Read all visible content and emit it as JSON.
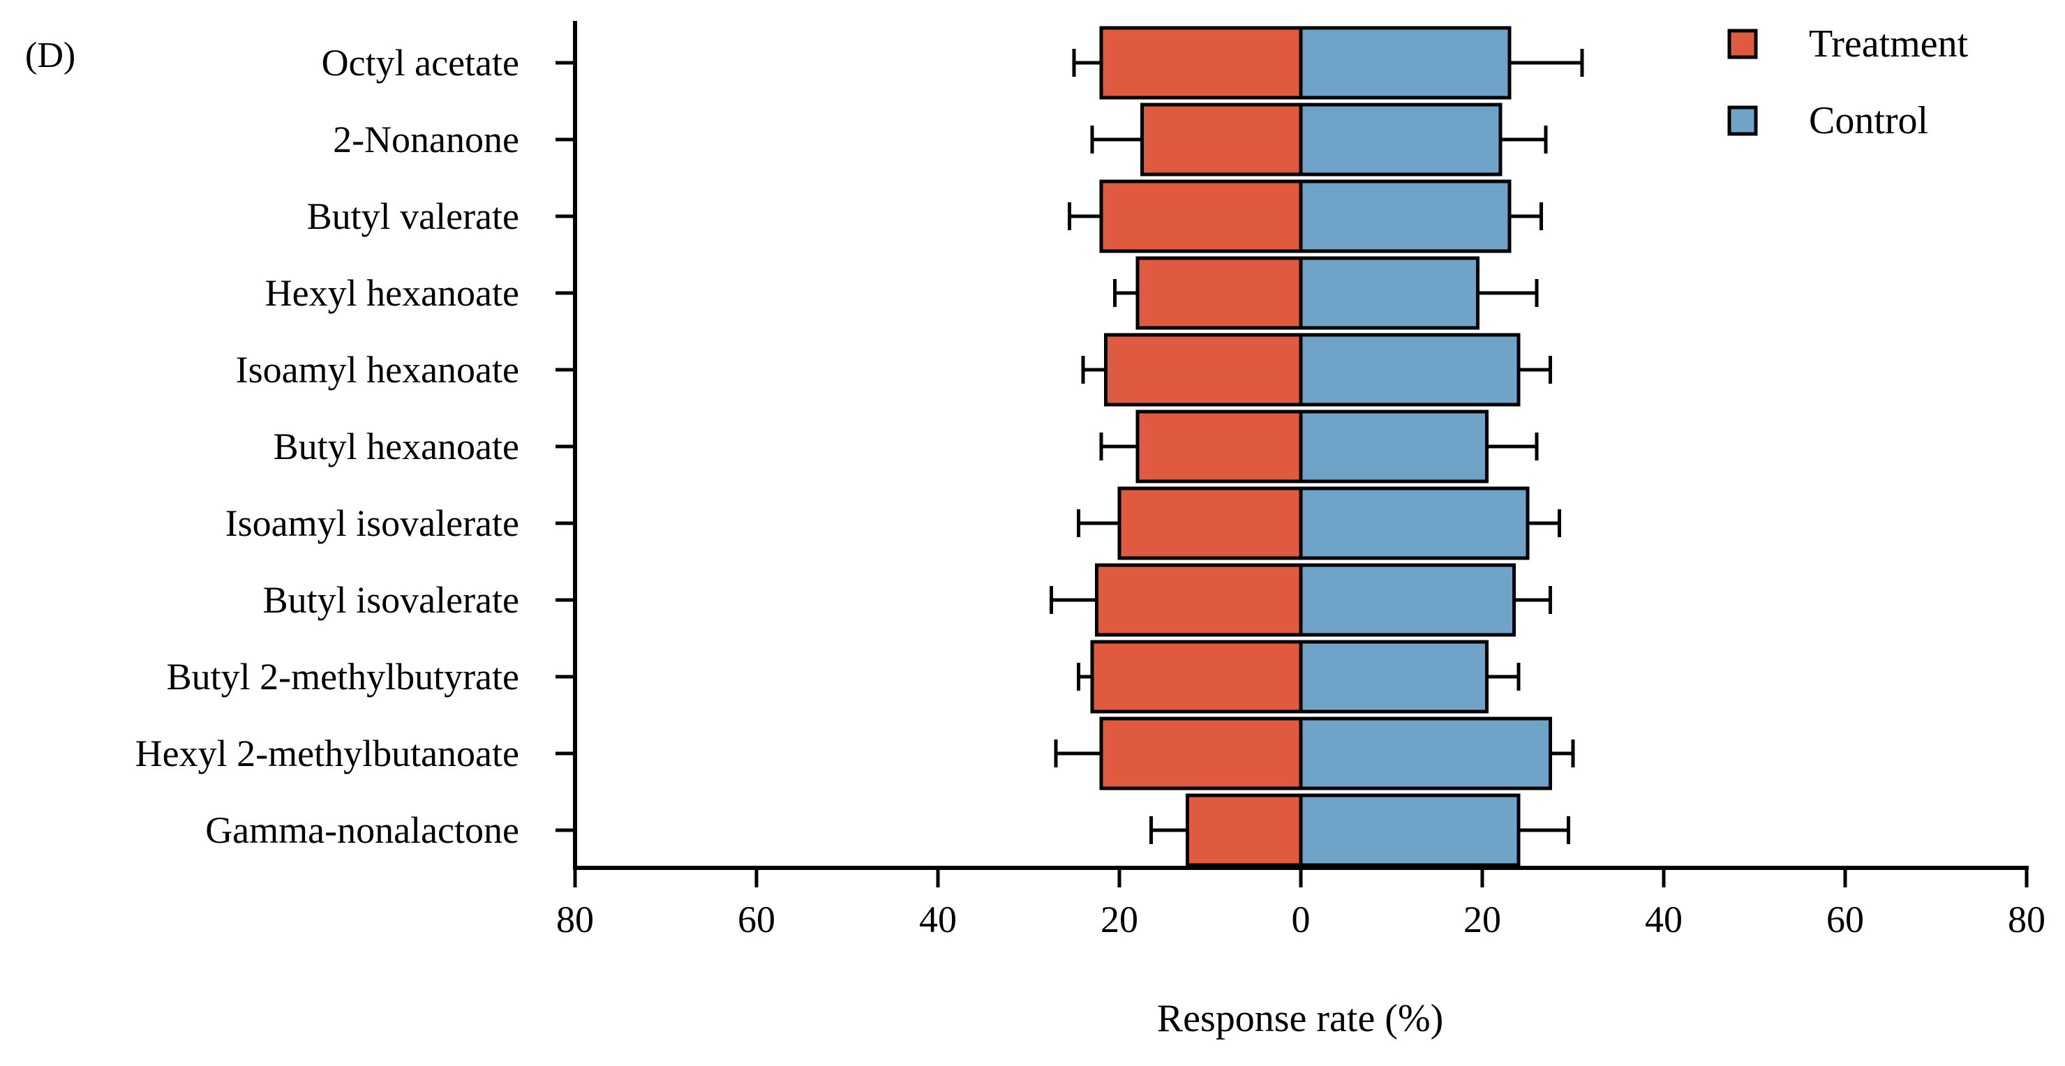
{
  "panel_label": "(D)",
  "chart_data": {
    "type": "bar",
    "orientation": "horizontal-diverging",
    "title": "",
    "xlabel": "Response rate  (%)",
    "ylabel": "",
    "xlim": [
      -80,
      80
    ],
    "x_tick_values": [
      -80,
      -60,
      -40,
      -20,
      0,
      20,
      40,
      60,
      80
    ],
    "x_tick_labels": [
      "80",
      "60",
      "40",
      "20",
      "0",
      "20",
      "40",
      "60",
      "80"
    ],
    "legend_position": "top-right",
    "categories": [
      "Octyl acetate",
      "2-Nonanone",
      "Butyl valerate",
      "Hexyl hexanoate",
      "Isoamyl hexanoate",
      "Butyl hexanoate",
      "Isoamyl isovalerate",
      "Butyl isovalerate",
      "Butyl 2-methylbutyrate",
      "Hexyl 2-methylbutanoate",
      "Gamma-nonalactone"
    ],
    "series": [
      {
        "name": "Treatment",
        "side": "left",
        "color": "#E05A3F",
        "values": [
          22,
          17.5,
          22,
          18,
          21.5,
          18,
          20,
          22.5,
          23,
          22,
          12.5
        ],
        "errors": [
          3,
          5.5,
          3.5,
          2.5,
          2.5,
          4,
          4.5,
          5,
          1.5,
          5,
          4
        ]
      },
      {
        "name": "Control",
        "side": "right",
        "color": "#6FA3C7",
        "values": [
          23,
          22,
          23,
          19.5,
          24,
          20.5,
          25,
          23.5,
          20.5,
          27.5,
          24
        ],
        "errors": [
          8,
          5,
          3.5,
          6.5,
          3.5,
          5.5,
          3.5,
          4,
          3.5,
          2.5,
          5.5
        ]
      }
    ]
  }
}
